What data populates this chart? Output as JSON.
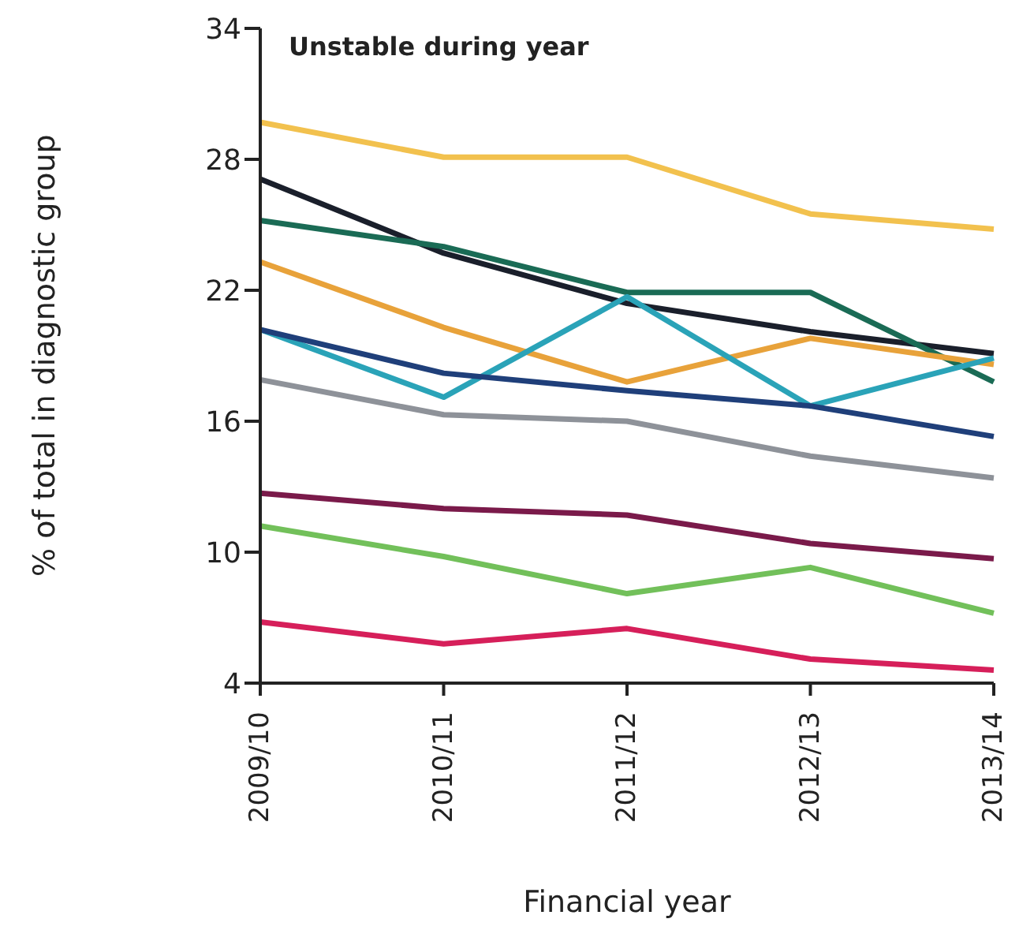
{
  "chart_data": {
    "type": "line",
    "title": "Unstable during year",
    "xlabel": "Financial year",
    "ylabel": "% of total in diagnostic group",
    "categories": [
      "2009/10",
      "2010/11",
      "2011/12",
      "2012/13",
      "2013/14"
    ],
    "ylim": [
      4,
      34
    ],
    "yticks": [
      4,
      10,
      16,
      22,
      28,
      34
    ],
    "grid": false,
    "legend": false,
    "marker": "none",
    "line_style": "solid",
    "series": [
      {
        "color": "#f2c14e",
        "values": [
          29.7,
          28.1,
          28.1,
          25.5,
          24.8
        ]
      },
      {
        "color": "#1a1f2b",
        "values": [
          27.1,
          23.7,
          21.4,
          20.1,
          19.1
        ]
      },
      {
        "color": "#1a6b55",
        "values": [
          25.2,
          24.0,
          21.9,
          21.9,
          17.8
        ]
      },
      {
        "color": "#e8a23a",
        "values": [
          23.3,
          20.3,
          17.8,
          19.8,
          18.6
        ]
      },
      {
        "color": "#2aa3b8",
        "values": [
          20.2,
          17.1,
          21.7,
          16.7,
          18.9
        ]
      },
      {
        "color": "#1f3f7a",
        "values": [
          20.2,
          18.2,
          17.4,
          16.7,
          15.3
        ]
      },
      {
        "color": "#8e9299",
        "values": [
          17.9,
          16.3,
          16.0,
          14.4,
          13.4
        ]
      },
      {
        "color": "#7a1a4a",
        "values": [
          12.7,
          12.0,
          11.7,
          10.4,
          9.7
        ]
      },
      {
        "color": "#72c05a",
        "values": [
          11.2,
          9.8,
          8.1,
          9.3,
          7.2
        ]
      },
      {
        "color": "#d61f5a",
        "values": [
          6.8,
          5.8,
          6.5,
          5.1,
          4.6
        ]
      }
    ]
  }
}
